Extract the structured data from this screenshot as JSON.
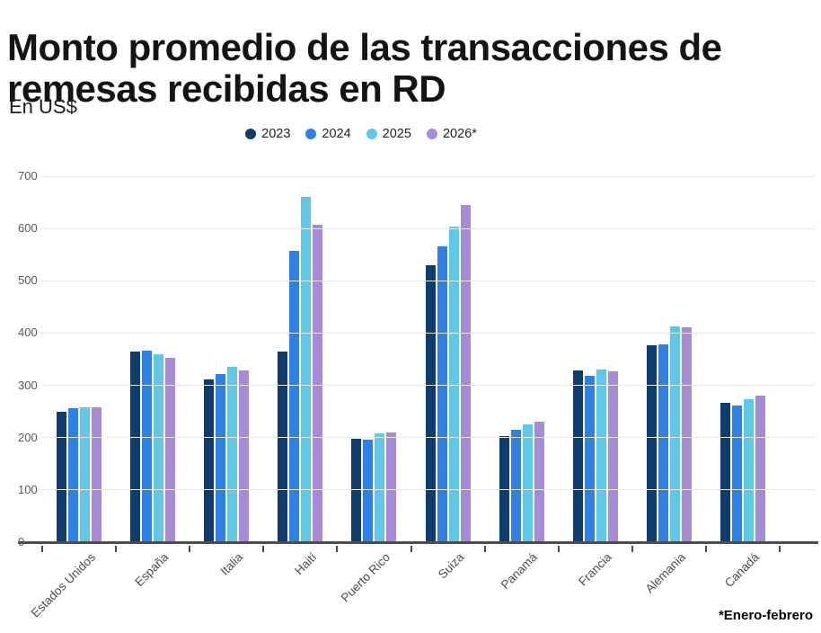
{
  "chart_data": {
    "type": "bar",
    "title": "Monto promedio de las transacciones de remesas recibidas en RD",
    "subtitle": "En US$",
    "footnote": "*Enero-febrero",
    "categories": [
      "Estados Unidos",
      "España",
      "Italia",
      "Haití",
      "Puerto Rico",
      "Suiza",
      "Panamá",
      "Francia",
      "Alemania",
      "Canadá"
    ],
    "series": [
      {
        "name": "2023",
        "color": "#0e3d6d",
        "values": [
          250,
          364,
          311,
          365,
          198,
          530,
          203,
          328,
          376,
          267
        ]
      },
      {
        "name": "2024",
        "color": "#2f80e4",
        "values": [
          257,
          366,
          322,
          557,
          196,
          566,
          215,
          319,
          379,
          262
        ]
      },
      {
        "name": "2025",
        "color": "#5ec8e8",
        "values": [
          258,
          360,
          335,
          660,
          208,
          604,
          225,
          330,
          413,
          273
        ]
      },
      {
        "name": "2026*",
        "color": "#a78ad8",
        "values": [
          258,
          353,
          328,
          607,
          210,
          645,
          231,
          326,
          411,
          280
        ]
      }
    ],
    "ylim": [
      0,
      700
    ],
    "yticks": [
      0,
      100,
      200,
      300,
      400,
      500,
      600,
      700
    ],
    "grid": "horizontal",
    "legend_position": "top-center",
    "xlabel": "",
    "ylabel": ""
  }
}
